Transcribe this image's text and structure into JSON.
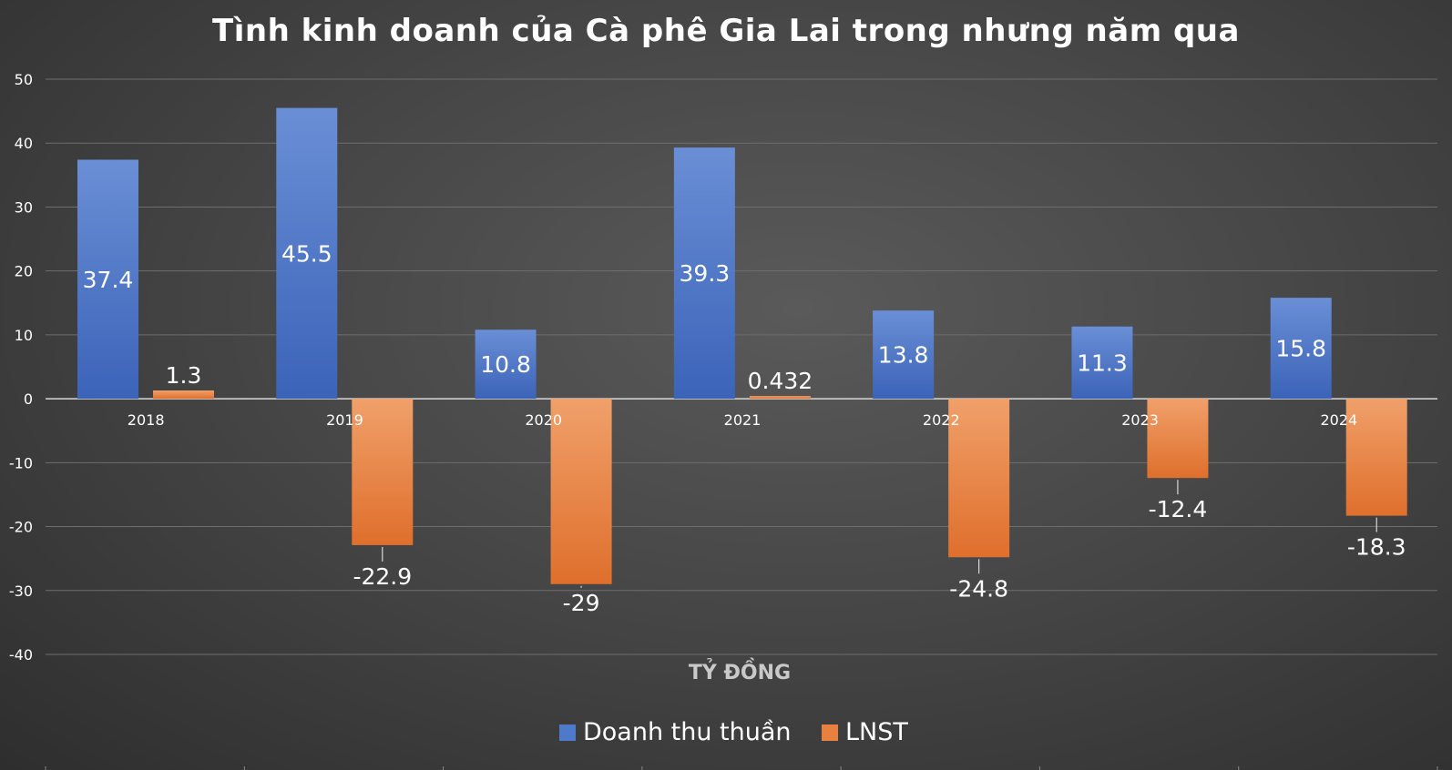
{
  "chart_data": {
    "type": "bar",
    "title": "Tình kinh doanh của Cà phê Gia Lai trong nhưng năm qua",
    "xlabel": "TỶ ĐỒNG",
    "ylabel": "",
    "categories": [
      "2018",
      "2019",
      "2020",
      "2021",
      "2022",
      "2023",
      "2024"
    ],
    "series": [
      {
        "name": "Doanh thu thuần",
        "values": [
          37.4,
          45.5,
          10.8,
          39.3,
          13.8,
          11.3,
          15.8
        ],
        "labels": [
          "37.4",
          "45.5",
          "10.8",
          "39.3",
          "13.8",
          "11.3",
          "15.8"
        ],
        "color": "#4f79c9"
      },
      {
        "name": "LNST",
        "values": [
          1.3,
          -22.9,
          -29,
          0.432,
          -24.8,
          -12.4,
          -18.3
        ],
        "labels": [
          "1.3",
          "-22.9",
          "-29",
          "0.432",
          "-24.8",
          "-12.4",
          "-18.3"
        ],
        "color": "#e8803f"
      }
    ],
    "ylim": [
      -40,
      50
    ],
    "yticks": [
      "-40",
      "-30",
      "-20",
      "-10",
      "0",
      "10",
      "20",
      "30",
      "40",
      "50"
    ],
    "grid": true,
    "legend": "bottom-center"
  }
}
